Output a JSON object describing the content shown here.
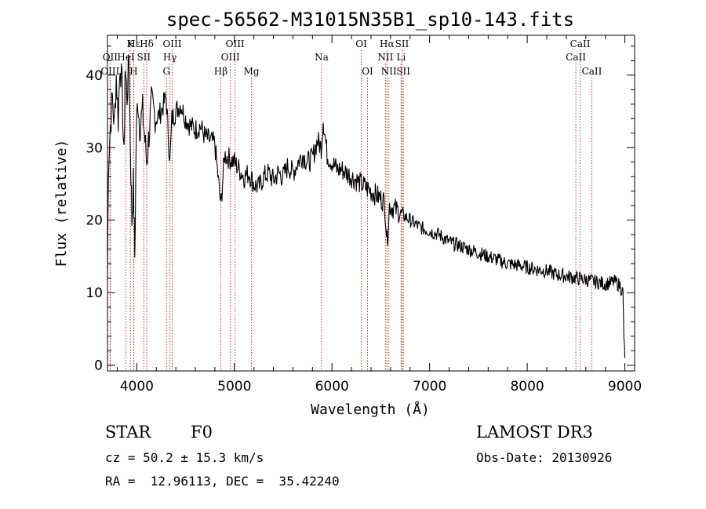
{
  "chart_data": {
    "type": "line",
    "title": "spec-56562-M31015N35B1_sp10-143.fits",
    "xlabel": "Wavelength (Å)",
    "ylabel": "Flux (relative)",
    "xlim": [
      3700,
      9100
    ],
    "ylim": [
      -0.8,
      45.5
    ],
    "xticks": [
      4000,
      5000,
      6000,
      7000,
      8000,
      9000
    ],
    "yticks": [
      0,
      10,
      20,
      30,
      40
    ],
    "series": [
      {
        "name": "flux",
        "points": [
          [
            3700,
            12
          ],
          [
            3710,
            28
          ],
          [
            3730,
            33
          ],
          [
            3750,
            37
          ],
          [
            3770,
            33
          ],
          [
            3790,
            40
          ],
          [
            3810,
            34
          ],
          [
            3830,
            42
          ],
          [
            3850,
            38
          ],
          [
            3870,
            28
          ],
          [
            3880,
            41
          ],
          [
            3900,
            37
          ],
          [
            3920,
            42
          ],
          [
            3935,
            30
          ],
          [
            3950,
            20
          ],
          [
            3965,
            25
          ],
          [
            3980,
            15
          ],
          [
            3995,
            32
          ],
          [
            4010,
            37
          ],
          [
            4030,
            33
          ],
          [
            4060,
            35
          ],
          [
            4102,
            28
          ],
          [
            4150,
            36
          ],
          [
            4200,
            34
          ],
          [
            4250,
            35
          ],
          [
            4300,
            37
          ],
          [
            4340,
            28
          ],
          [
            4360,
            34
          ],
          [
            4400,
            35
          ],
          [
            4450,
            36
          ],
          [
            4500,
            34
          ],
          [
            4550,
            33
          ],
          [
            4600,
            32.5
          ],
          [
            4650,
            33
          ],
          [
            4700,
            31.5
          ],
          [
            4750,
            31
          ],
          [
            4800,
            30.5
          ],
          [
            4861,
            22
          ],
          [
            4900,
            29
          ],
          [
            4950,
            28.5
          ],
          [
            5000,
            28
          ],
          [
            5050,
            27
          ],
          [
            5100,
            26
          ],
          [
            5150,
            26.5
          ],
          [
            5200,
            25
          ],
          [
            5250,
            24.5
          ],
          [
            5300,
            26
          ],
          [
            5350,
            26.5
          ],
          [
            5400,
            25.5
          ],
          [
            5450,
            26.5
          ],
          [
            5500,
            26
          ],
          [
            5550,
            27.5
          ],
          [
            5600,
            26.5
          ],
          [
            5650,
            28
          ],
          [
            5700,
            29
          ],
          [
            5750,
            28
          ],
          [
            5800,
            28.5
          ],
          [
            5850,
            31
          ],
          [
            5890,
            30
          ],
          [
            5910,
            34
          ],
          [
            5950,
            29
          ],
          [
            6000,
            28
          ],
          [
            6050,
            27
          ],
          [
            6100,
            27
          ],
          [
            6150,
            26.5
          ],
          [
            6200,
            26
          ],
          [
            6250,
            25.5
          ],
          [
            6300,
            25
          ],
          [
            6350,
            24.5
          ],
          [
            6400,
            24
          ],
          [
            6450,
            23.5
          ],
          [
            6500,
            23
          ],
          [
            6540,
            22.5
          ],
          [
            6563,
            17
          ],
          [
            6590,
            22
          ],
          [
            6650,
            21.5
          ],
          [
            6700,
            21
          ],
          [
            6750,
            20.5
          ],
          [
            6800,
            20
          ],
          [
            6900,
            19
          ],
          [
            7000,
            18.5
          ],
          [
            7100,
            18
          ],
          [
            7200,
            17
          ],
          [
            7300,
            16.5
          ],
          [
            7400,
            16
          ],
          [
            7500,
            15.5
          ],
          [
            7600,
            15
          ],
          [
            7700,
            14.5
          ],
          [
            7800,
            14
          ],
          [
            7900,
            13.8
          ],
          [
            8000,
            13.5
          ],
          [
            8100,
            13.2
          ],
          [
            8200,
            13
          ],
          [
            8300,
            12.5
          ],
          [
            8400,
            12.3
          ],
          [
            8500,
            12
          ],
          [
            8600,
            11.8
          ],
          [
            8700,
            11.5
          ],
          [
            8800,
            11.2
          ],
          [
            8900,
            11.5
          ],
          [
            8950,
            11
          ],
          [
            8980,
            10
          ],
          [
            8990,
            4
          ],
          [
            9000,
            1
          ]
        ]
      }
    ],
    "spectral_lines": [
      {
        "label": "Hε",
        "wavelength": 3970,
        "row": 0
      },
      {
        "label": "K",
        "wavelength": 3934,
        "row": 0
      },
      {
        "label": "Hδ",
        "wavelength": 4102,
        "row": 0
      },
      {
        "label": "OIII",
        "wavelength": 4363,
        "row": 0
      },
      {
        "label": "OIII",
        "wavelength": 5007,
        "row": 0
      },
      {
        "label": "OI",
        "wavelength": 6300,
        "row": 0
      },
      {
        "label": "Hα",
        "wavelength": 6563,
        "row": 0
      },
      {
        "label": "SII",
        "wavelength": 6717,
        "row": 0
      },
      {
        "label": "CaII",
        "wavelength": 8542,
        "row": 0
      },
      {
        "label": "OII",
        "wavelength": 3727,
        "row": 1
      },
      {
        "label": "HeI",
        "wavelength": 3889,
        "row": 1
      },
      {
        "label": "SII",
        "wavelength": 4072,
        "row": 1
      },
      {
        "label": "Hγ",
        "wavelength": 4340,
        "row": 1
      },
      {
        "label": "OIII",
        "wavelength": 4959,
        "row": 1
      },
      {
        "label": "Na",
        "wavelength": 5893,
        "row": 1
      },
      {
        "label": "NII",
        "wavelength": 6548,
        "row": 1
      },
      {
        "label": "Li",
        "wavelength": 6708,
        "row": 1
      },
      {
        "label": "CaII",
        "wavelength": 8498,
        "row": 1
      },
      {
        "label": "OIII",
        "wavelength": 3727,
        "row": 2
      },
      {
        "label": "H",
        "wavelength": 3968,
        "row": 2
      },
      {
        "label": "G",
        "wavelength": 4305,
        "row": 2
      },
      {
        "label": "Hβ",
        "wavelength": 4861,
        "row": 2
      },
      {
        "label": "Mg",
        "wavelength": 5175,
        "row": 2
      },
      {
        "label": "OI",
        "wavelength": 6364,
        "row": 2
      },
      {
        "label": "NII",
        "wavelength": 6583,
        "row": 2
      },
      {
        "label": "SII",
        "wavelength": 6731,
        "row": 2
      },
      {
        "label": "CaII",
        "wavelength": 8662,
        "row": 2
      }
    ]
  },
  "info": {
    "object_class": "STAR",
    "subclass": "F0",
    "survey": "LAMOST DR3",
    "cz": "cz = 50.2 ± 15.3 km/s",
    "obs_date": "Obs-Date: 20130926",
    "coords": "RA =  12.96113, DEC =  35.42240"
  },
  "colors": {
    "line_marker": "#b22222",
    "spectrum": "#000000"
  }
}
